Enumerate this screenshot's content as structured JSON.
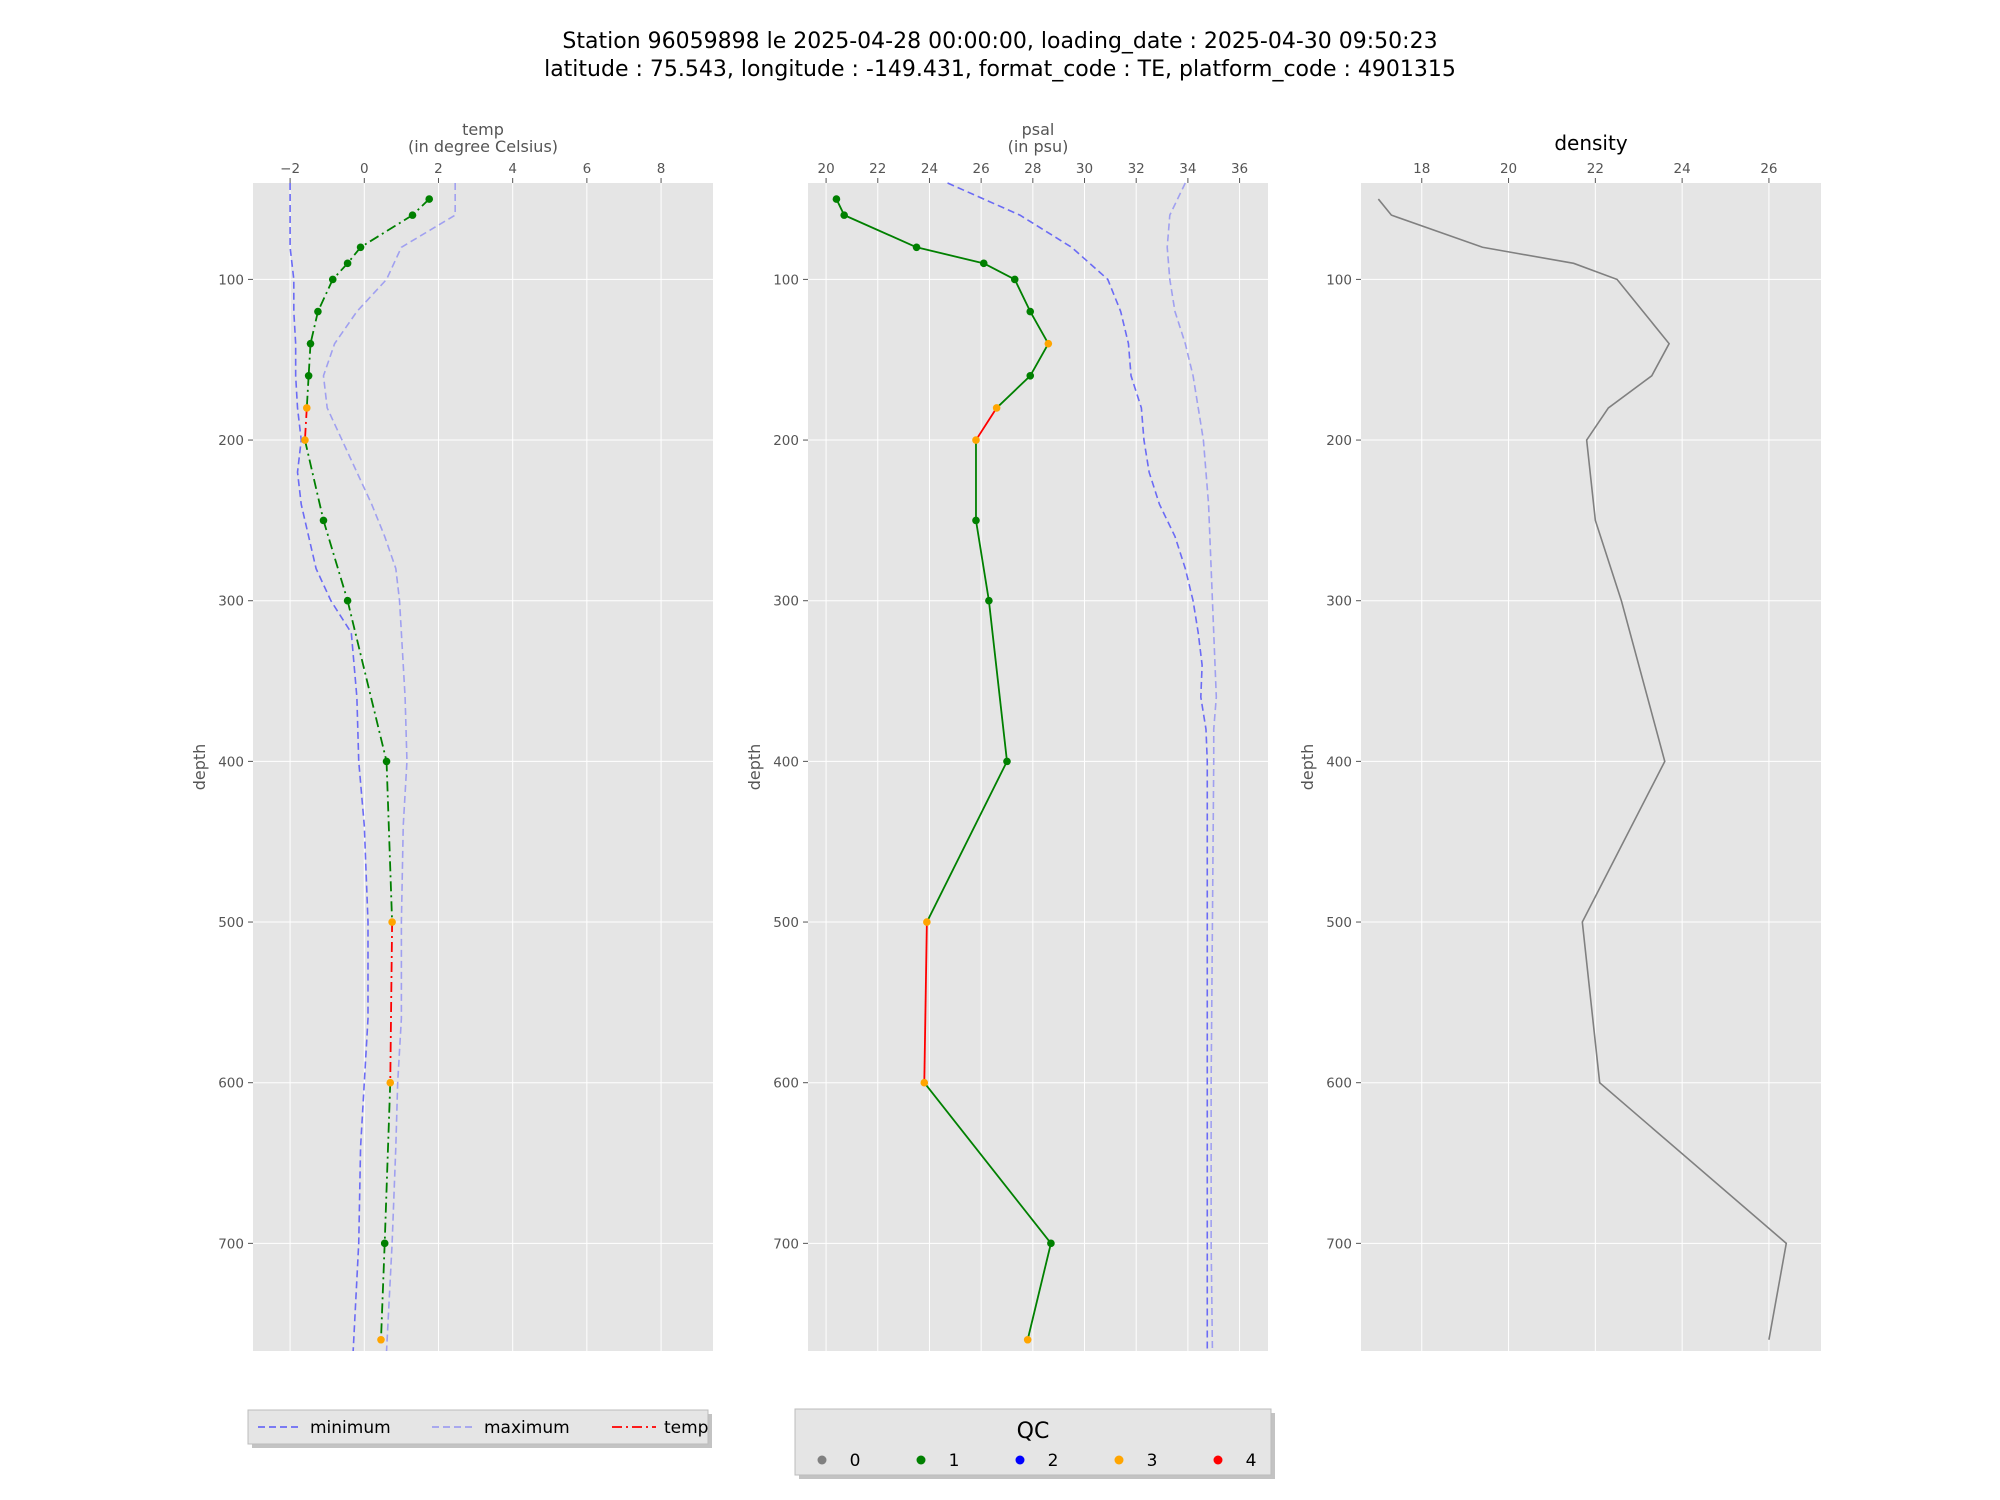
{
  "figure": {
    "title_line1": "Station 96059898 le 2025-04-28 00:00:00, loading_date : 2025-04-30 09:50:23",
    "title_line2": "latitude : 75.543, longitude : -149.431, format_code : TE, platform_code : 4901315"
  },
  "colors": {
    "panel_bg": "#e5e5e5",
    "grid": "#ffffff",
    "minimum": "#6b6bf5",
    "maximum": "#a0a0f0",
    "density": "#808080",
    "qc_0": "#808080",
    "qc_1": "#008000",
    "qc_2": "#0000ff",
    "qc_3": "#ffa500",
    "qc_4": "#ff0000"
  },
  "chart_data": [
    {
      "type": "line",
      "xlabel_line1": "temp",
      "xlabel_line2": "(in degree Celsius)",
      "ylabel": "depth",
      "xlim": [
        -3,
        9.4
      ],
      "ylim": [
        767,
        40
      ],
      "xticks": [
        -2,
        0,
        2,
        4,
        6,
        8
      ],
      "xtick_labels": [
        "−2",
        "0",
        "2",
        "4",
        "6",
        "8"
      ],
      "yticks": [
        100,
        200,
        300,
        400,
        500,
        600,
        700
      ],
      "yticks_labels": [
        "100",
        "200",
        "300",
        "400",
        "500",
        "600",
        "700"
      ],
      "grid": true,
      "series": [
        {
          "name": "minimum",
          "style": "dashed",
          "depth": [
            40,
            60,
            80,
            100,
            120,
            140,
            160,
            180,
            200,
            220,
            240,
            260,
            280,
            300,
            320,
            360,
            400,
            440,
            500,
            560,
            600,
            640,
            700,
            767
          ],
          "values": [
            -2.0,
            -2.0,
            -2.0,
            -1.9,
            -1.9,
            -1.85,
            -1.85,
            -1.8,
            -1.7,
            -1.8,
            -1.7,
            -1.5,
            -1.3,
            -0.9,
            -0.35,
            -0.2,
            -0.15,
            0.0,
            0.1,
            0.1,
            0.0,
            -0.1,
            -0.15,
            -0.3
          ]
        },
        {
          "name": "maximum",
          "style": "dashed",
          "depth": [
            40,
            60,
            80,
            100,
            120,
            140,
            160,
            180,
            200,
            220,
            240,
            260,
            280,
            300,
            320,
            360,
            400,
            440,
            500,
            560,
            600,
            640,
            700,
            767
          ],
          "values": [
            2.45,
            2.45,
            1.0,
            0.6,
            -0.2,
            -0.8,
            -1.1,
            -1.0,
            -0.6,
            -0.2,
            0.2,
            0.55,
            0.85,
            0.95,
            1.0,
            1.1,
            1.15,
            1.05,
            1.0,
            1.0,
            0.9,
            0.85,
            0.75,
            0.6
          ]
        },
        {
          "name": "temp",
          "style": "dashdot",
          "depth": [
            50,
            60,
            80,
            90,
            100,
            120,
            140,
            160,
            180,
            200,
            250,
            300,
            400,
            500,
            600,
            700,
            760
          ],
          "values": [
            1.75,
            1.3,
            -0.1,
            -0.45,
            -0.85,
            -1.25,
            -1.45,
            -1.5,
            -1.55,
            -1.6,
            -1.1,
            -0.45,
            0.6,
            0.75,
            0.7,
            0.55,
            0.45
          ],
          "qc": [
            1,
            1,
            1,
            1,
            1,
            1,
            1,
            1,
            3,
            3,
            1,
            1,
            1,
            3,
            3,
            1,
            3
          ]
        }
      ],
      "legend": {
        "placement": "bottom",
        "items": [
          {
            "label": "minimum",
            "style": "dashed"
          },
          {
            "label": "maximum",
            "style": "dashed"
          },
          {
            "label": "temp",
            "style": "dashdot"
          }
        ]
      }
    },
    {
      "type": "line",
      "xlabel_line1": "psal",
      "xlabel_line2": "(in psu)",
      "ylabel": "depth",
      "xlim": [
        19.3,
        37.1
      ],
      "ylim": [
        767,
        40
      ],
      "xticks": [
        20,
        22,
        24,
        26,
        28,
        30,
        32,
        34,
        36
      ],
      "xtick_labels": [
        "20",
        "22",
        "24",
        "26",
        "28",
        "30",
        "32",
        "34",
        "36"
      ],
      "yticks": [
        100,
        200,
        300,
        400,
        500,
        600,
        700
      ],
      "yticks_labels": [
        "100",
        "200",
        "300",
        "400",
        "500",
        "600",
        "700"
      ],
      "grid": true,
      "series": [
        {
          "name": "minimum",
          "style": "dashed",
          "depth": [
            40,
            60,
            80,
            100,
            120,
            140,
            160,
            180,
            200,
            220,
            240,
            260,
            280,
            300,
            320,
            340,
            360,
            380,
            400,
            500,
            600,
            700,
            767
          ],
          "values": [
            24.7,
            27.5,
            29.5,
            30.9,
            31.4,
            31.7,
            31.8,
            32.2,
            32.3,
            32.5,
            32.9,
            33.5,
            33.9,
            34.2,
            34.4,
            34.55,
            34.5,
            34.7,
            34.75,
            34.75,
            34.75,
            34.75,
            34.75
          ]
        },
        {
          "name": "maximum",
          "style": "dashed",
          "depth": [
            40,
            60,
            80,
            100,
            120,
            140,
            160,
            180,
            200,
            220,
            240,
            260,
            280,
            300,
            320,
            340,
            360,
            380,
            400,
            500,
            600,
            700,
            767
          ],
          "values": [
            33.9,
            33.3,
            33.2,
            33.3,
            33.5,
            33.9,
            34.2,
            34.4,
            34.6,
            34.7,
            34.8,
            34.85,
            34.9,
            34.95,
            35.0,
            35.05,
            35.1,
            35.0,
            35.0,
            34.95,
            34.9,
            34.9,
            34.95
          ]
        },
        {
          "name": "psal",
          "style": "solid",
          "depth": [
            50,
            60,
            80,
            90,
            100,
            120,
            140,
            160,
            180,
            200,
            250,
            300,
            400,
            500,
            600,
            700,
            760
          ],
          "values": [
            20.4,
            20.7,
            23.5,
            26.1,
            27.3,
            27.9,
            28.6,
            27.9,
            26.6,
            25.8,
            25.8,
            26.3,
            27.0,
            23.9,
            23.8,
            28.7,
            27.8
          ],
          "qc": [
            1,
            1,
            1,
            1,
            1,
            1,
            3,
            1,
            3,
            3,
            1,
            1,
            1,
            3,
            3,
            1,
            3
          ]
        }
      ],
      "legend": {
        "placement": "bottom",
        "title": "QC",
        "items": [
          {
            "label": "0",
            "color": "#808080"
          },
          {
            "label": "1",
            "color": "#008000"
          },
          {
            "label": "2",
            "color": "#0000ff"
          },
          {
            "label": "3",
            "color": "#ffa500"
          },
          {
            "label": "4",
            "color": "#ff0000"
          }
        ]
      }
    },
    {
      "type": "line",
      "title": "density",
      "ylabel": "depth",
      "xlim": [
        16.6,
        27.2
      ],
      "ylim": [
        767,
        40
      ],
      "xticks": [
        18,
        20,
        22,
        24,
        26
      ],
      "xtick_labels": [
        "18",
        "20",
        "22",
        "24",
        "26"
      ],
      "yticks": [
        100,
        200,
        300,
        400,
        500,
        600,
        700
      ],
      "yticks_labels": [
        "100",
        "200",
        "300",
        "400",
        "500",
        "600",
        "700"
      ],
      "grid": true,
      "series": [
        {
          "style": "solid",
          "depth": [
            50,
            60,
            80,
            90,
            100,
            120,
            140,
            160,
            180,
            200,
            250,
            300,
            400,
            500,
            600,
            700,
            760
          ],
          "values": [
            17.0,
            17.3,
            19.4,
            21.5,
            22.5,
            23.1,
            23.7,
            23.3,
            22.3,
            21.8,
            22.0,
            22.6,
            23.6,
            21.7,
            22.1,
            26.4,
            26.0
          ]
        }
      ]
    }
  ]
}
